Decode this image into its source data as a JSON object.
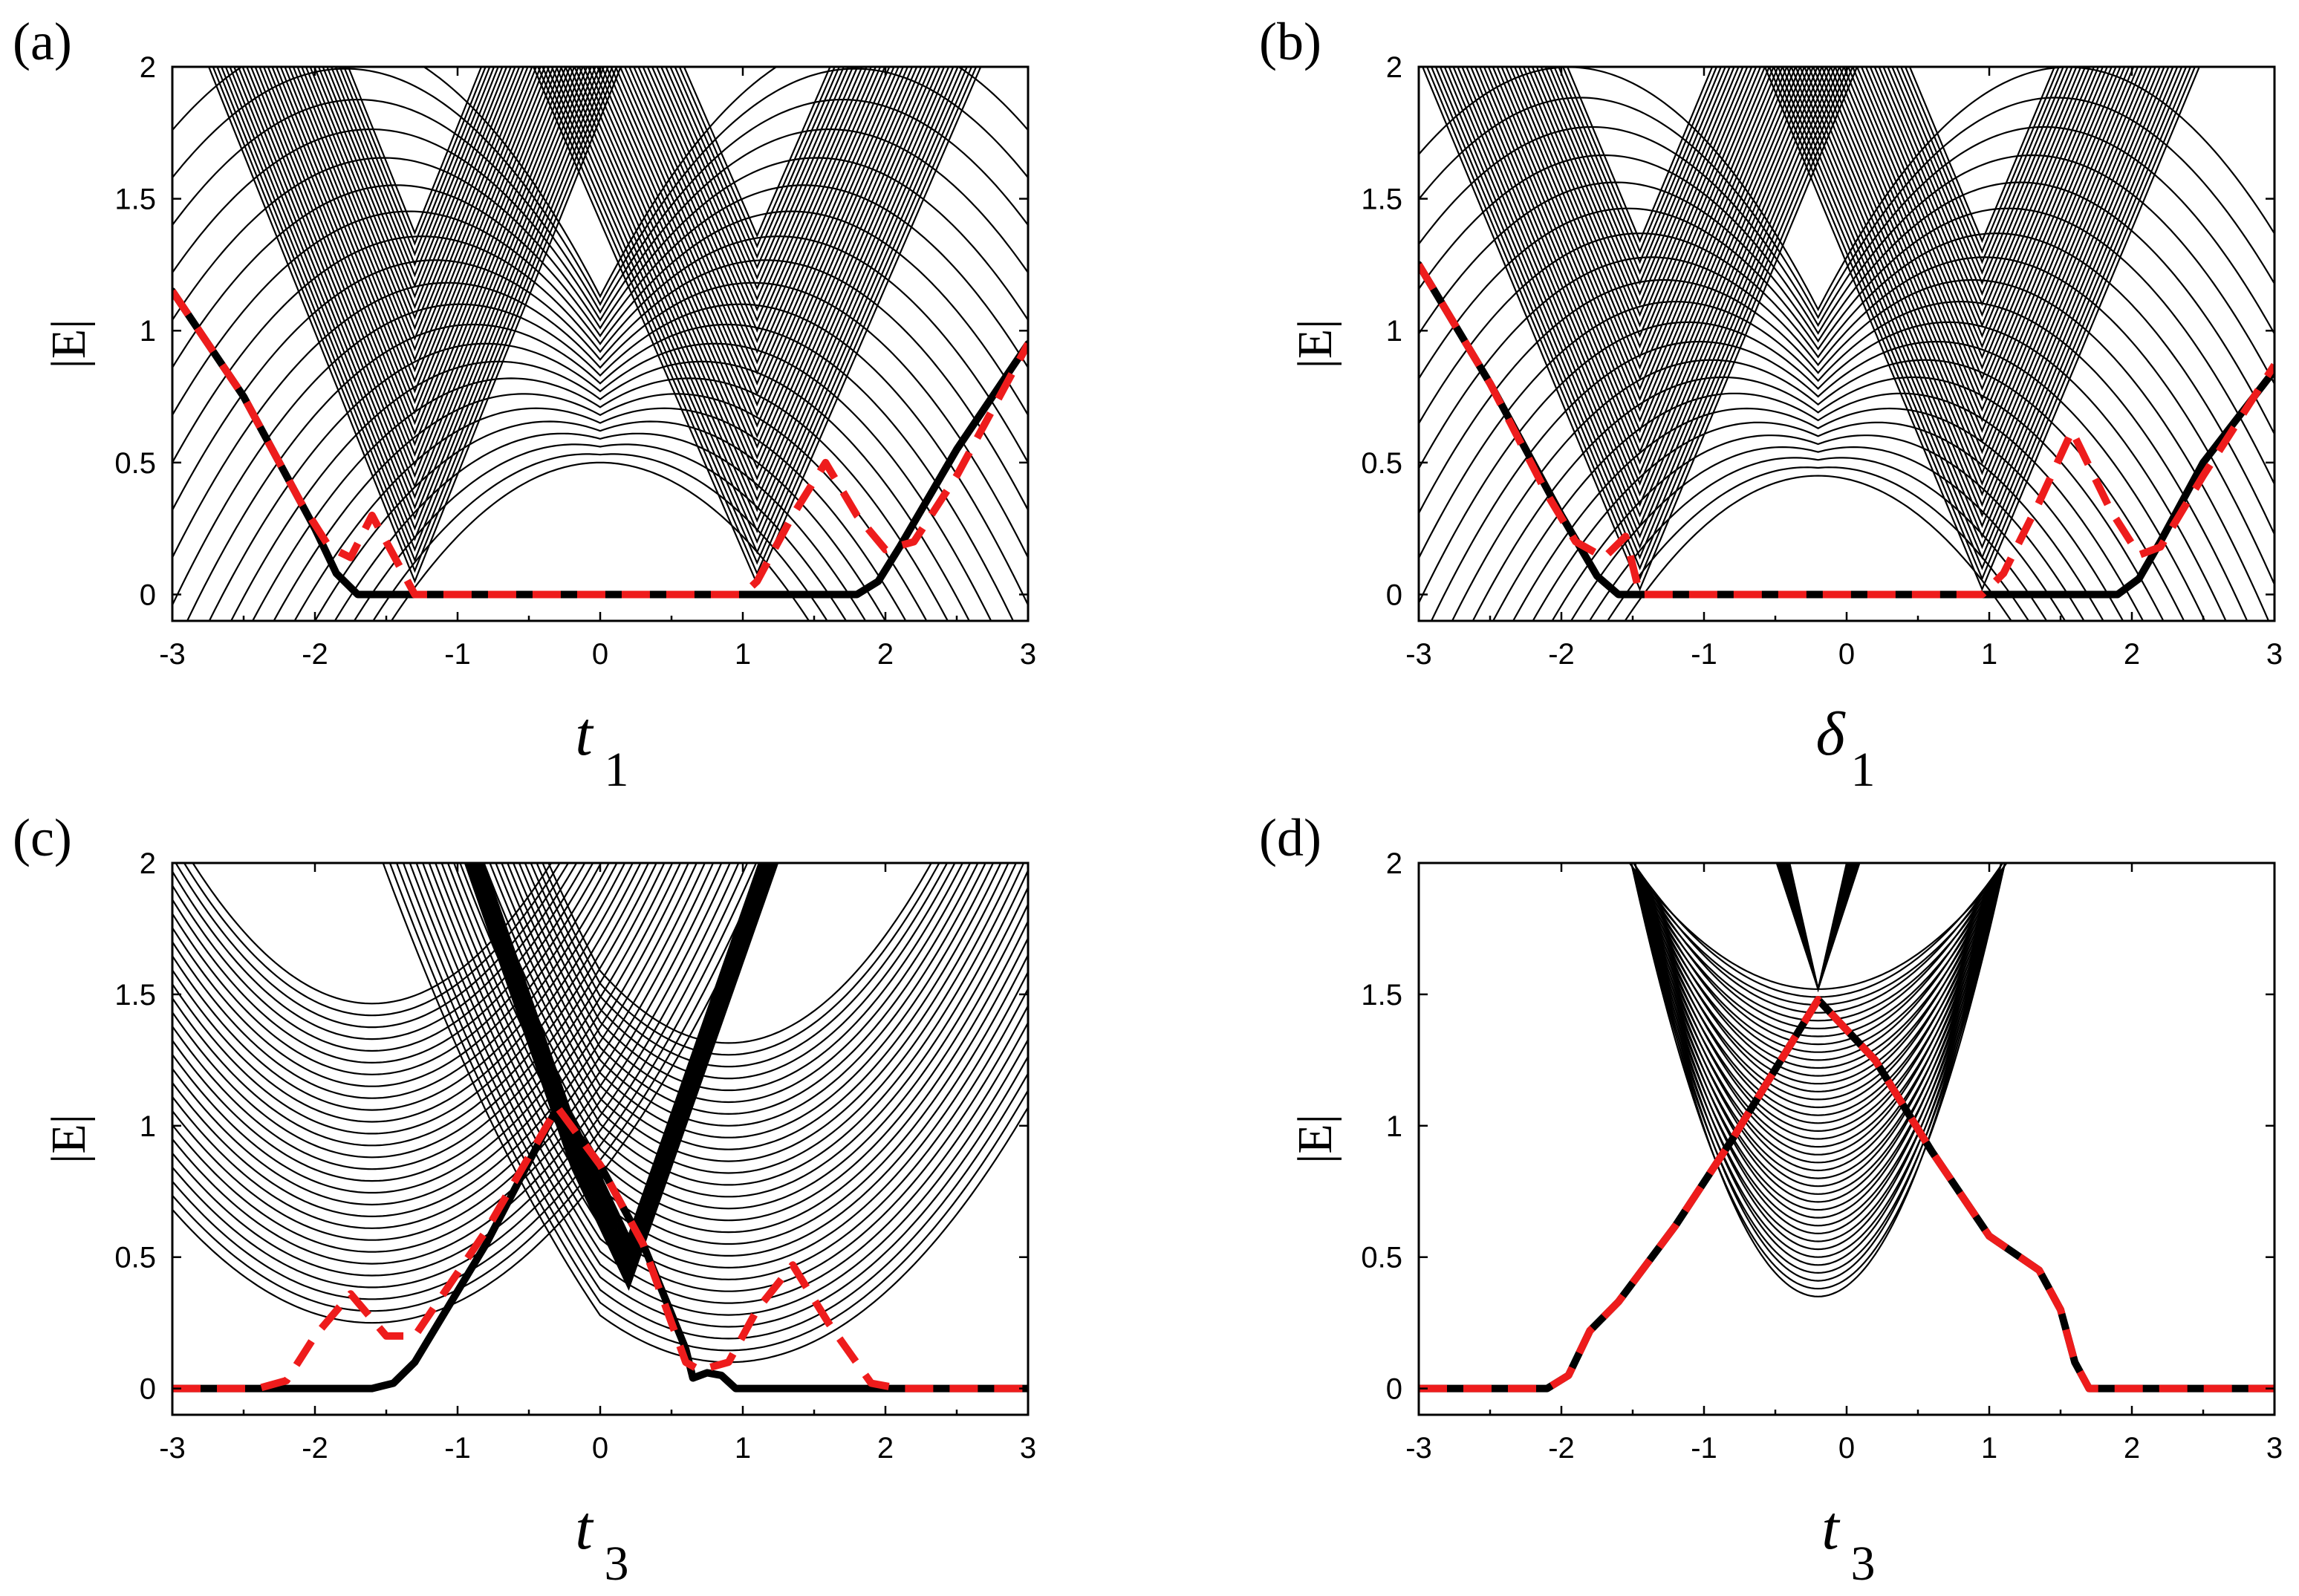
{
  "colors": {
    "bands": "#000000",
    "edge_gap": "#000000",
    "edge_dashed": "#ee1c1c"
  },
  "chart_data": [
    {
      "panel": "(a)",
      "type": "line",
      "xlabel": "t",
      "xlabel_sub": "1",
      "ylabel": "|E|",
      "xlim": [
        -3,
        3
      ],
      "ylim": [
        -0.1,
        2
      ],
      "xticks": [
        "-3",
        "-2",
        "-1",
        "0",
        "1",
        "2",
        "3"
      ],
      "yticks": [
        "0",
        "0.5",
        "1",
        "1.5",
        "2"
      ],
      "grid": false,
      "series": [
        {
          "style": "black-thick",
          "x": [
            -3,
            -2.5,
            -2,
            -1.85,
            -1.7,
            -1,
            0,
            1,
            1.8,
            1.95,
            2.1,
            2.5,
            3
          ],
          "y": [
            1.15,
            0.75,
            0.25,
            0.08,
            0,
            0,
            0,
            0,
            0,
            0.05,
            0.18,
            0.55,
            0.95
          ]
        },
        {
          "style": "red-dashed",
          "x": [
            -3,
            -2.5,
            -2.1,
            -1.9,
            -1.75,
            -1.6,
            -1.45,
            -1.3,
            -1,
            0,
            1,
            1.1,
            1.35,
            1.58,
            1.8,
            2,
            2.2,
            2.5,
            3
          ],
          "y": [
            1.15,
            0.75,
            0.35,
            0.18,
            0.14,
            0.3,
            0.15,
            0,
            0,
            0,
            0,
            0.05,
            0.3,
            0.5,
            0.3,
            0.17,
            0.2,
            0.45,
            0.95
          ]
        }
      ]
    },
    {
      "panel": "(b)",
      "type": "line",
      "xlabel": "δ",
      "xlabel_sub": "1",
      "ylabel": "|E|",
      "xlim": [
        -3,
        3
      ],
      "ylim": [
        -0.1,
        2
      ],
      "xticks": [
        "-3",
        "-2",
        "-1",
        "0",
        "1",
        "2",
        "3"
      ],
      "yticks": [
        "0",
        "0.5",
        "1",
        "1.5",
        "2"
      ],
      "grid": false,
      "series": [
        {
          "style": "black-thick",
          "x": [
            -3,
            -2.5,
            -2,
            -1.75,
            -1.6,
            -1,
            0,
            1,
            1.9,
            2.05,
            2.2,
            2.5,
            3
          ],
          "y": [
            1.25,
            0.8,
            0.3,
            0.07,
            0,
            0,
            0,
            0,
            0,
            0.06,
            0.2,
            0.5,
            0.85
          ]
        },
        {
          "style": "red-dashed",
          "x": [
            -3,
            -2.5,
            -2.1,
            -1.9,
            -1.7,
            -1.55,
            -1.45,
            -1,
            0,
            0.95,
            1.1,
            1.35,
            1.58,
            1.85,
            2.05,
            2.2,
            2.5,
            3
          ],
          "y": [
            1.25,
            0.8,
            0.38,
            0.2,
            0.14,
            0.22,
            0,
            0,
            0,
            0,
            0.08,
            0.35,
            0.62,
            0.32,
            0.15,
            0.18,
            0.45,
            0.87
          ]
        }
      ]
    },
    {
      "panel": "(c)",
      "type": "line",
      "xlabel": "t",
      "xlabel_sub": "3",
      "ylabel": "|E|",
      "xlim": [
        -3,
        3
      ],
      "ylim": [
        -0.1,
        2
      ],
      "xticks": [
        "-3",
        "-2",
        "-1",
        "0",
        "1",
        "2",
        "3"
      ],
      "yticks": [
        "0",
        "0.5",
        "1",
        "1.5",
        "2"
      ],
      "grid": false,
      "series": [
        {
          "style": "black-thick",
          "x": [
            -3,
            -2,
            -1.6,
            -1.45,
            -1.3,
            -0.8,
            -0.3,
            0,
            0.3,
            0.6,
            0.65,
            0.75,
            0.85,
            0.95,
            1.3,
            1.8,
            2.3,
            3
          ],
          "y": [
            0,
            0,
            0,
            0.02,
            0.1,
            0.55,
            1.07,
            0.85,
            0.55,
            0.15,
            0.04,
            0.06,
            0.05,
            0,
            0,
            0,
            0,
            0
          ]
        },
        {
          "style": "red-dashed",
          "x": [
            -3,
            -2.4,
            -2.2,
            -2,
            -1.75,
            -1.5,
            -1.3,
            -0.8,
            -0.3,
            0,
            0.3,
            0.6,
            0.7,
            0.9,
            1.1,
            1.35,
            1.6,
            1.9,
            2.1,
            3
          ],
          "y": [
            0,
            0,
            0.03,
            0.2,
            0.36,
            0.2,
            0.2,
            0.6,
            1.07,
            0.85,
            0.55,
            0.1,
            0.07,
            0.1,
            0.3,
            0.47,
            0.25,
            0.02,
            0,
            0
          ]
        }
      ]
    },
    {
      "panel": "(d)",
      "type": "line",
      "xlabel": "t",
      "xlabel_sub": "3",
      "ylabel": "|E|",
      "xlim": [
        -3,
        3
      ],
      "ylim": [
        -0.1,
        2
      ],
      "xticks": [
        "-3",
        "-2",
        "-1",
        "0",
        "1",
        "2",
        "3"
      ],
      "yticks": [
        "0",
        "0.5",
        "1",
        "1.5",
        "2"
      ],
      "grid": false,
      "series": [
        {
          "style": "black-thick",
          "x": [
            -3,
            -2.1,
            -1.95,
            -1.8,
            -1.6,
            -1.2,
            -0.8,
            -0.2,
            0.2,
            0.6,
            1,
            1.35,
            1.5,
            1.6,
            1.7,
            2,
            3
          ],
          "y": [
            0,
            0,
            0.05,
            0.22,
            0.33,
            0.62,
            0.95,
            1.48,
            1.25,
            0.9,
            0.58,
            0.45,
            0.3,
            0.1,
            0,
            0,
            0
          ]
        },
        {
          "style": "red-dashed",
          "x": [
            -3,
            -2.1,
            -1.95,
            -1.8,
            -1.6,
            -1.2,
            -0.8,
            -0.2,
            0.2,
            0.6,
            1,
            1.35,
            1.5,
            1.6,
            1.7,
            2,
            3
          ],
          "y": [
            0,
            0,
            0.05,
            0.22,
            0.33,
            0.62,
            0.95,
            1.48,
            1.25,
            0.9,
            0.58,
            0.45,
            0.3,
            0.1,
            0,
            0,
            0
          ]
        }
      ]
    }
  ]
}
